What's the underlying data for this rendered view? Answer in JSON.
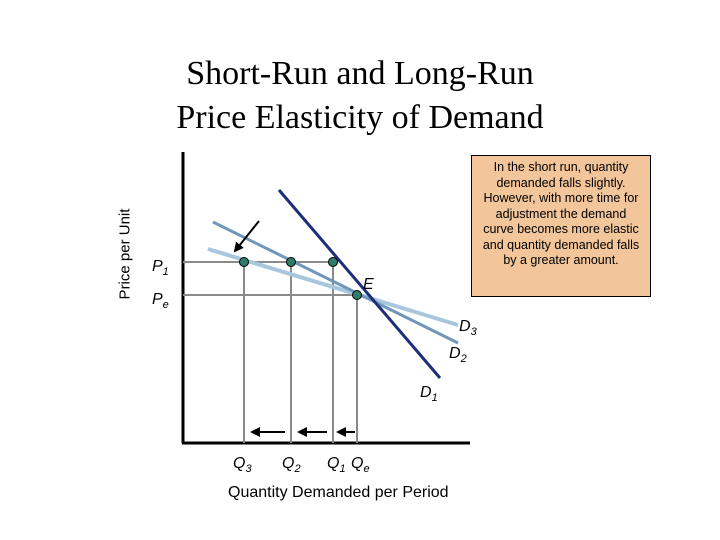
{
  "title_line1": "Short-Run and Long-Run",
  "title_line2": "Price Elasticity of Demand",
  "ylabel": "Price per Unit",
  "xlabel": "Quantity Demanded per Period",
  "note": "In the short run, quantity demanded falls slightly. However, with more time for adjustment the demand curve becomes more elastic and quantity demanded falls by a greater amount.",
  "labels": {
    "p1": {
      "main": "P",
      "sub": "1"
    },
    "pe": {
      "main": "P",
      "sub": "e"
    },
    "e": "E",
    "d1": {
      "main": "D",
      "sub": "1"
    },
    "d2": {
      "main": "D",
      "sub": "2"
    },
    "d3": {
      "main": "D",
      "sub": "3"
    },
    "q1": {
      "main": "Q",
      "sub": "1"
    },
    "q2": {
      "main": "Q",
      "sub": "2"
    },
    "q3": {
      "main": "Q",
      "sub": "3"
    },
    "qe": {
      "main": "Q",
      "sub": "e"
    }
  },
  "colors": {
    "d1": "#1f2e78",
    "d2": "#6f97bb",
    "d3": "#a9c6df",
    "guide": "#8a8a8a",
    "point": "#2e7d6b",
    "note_bg": "#f2c69a"
  }
}
